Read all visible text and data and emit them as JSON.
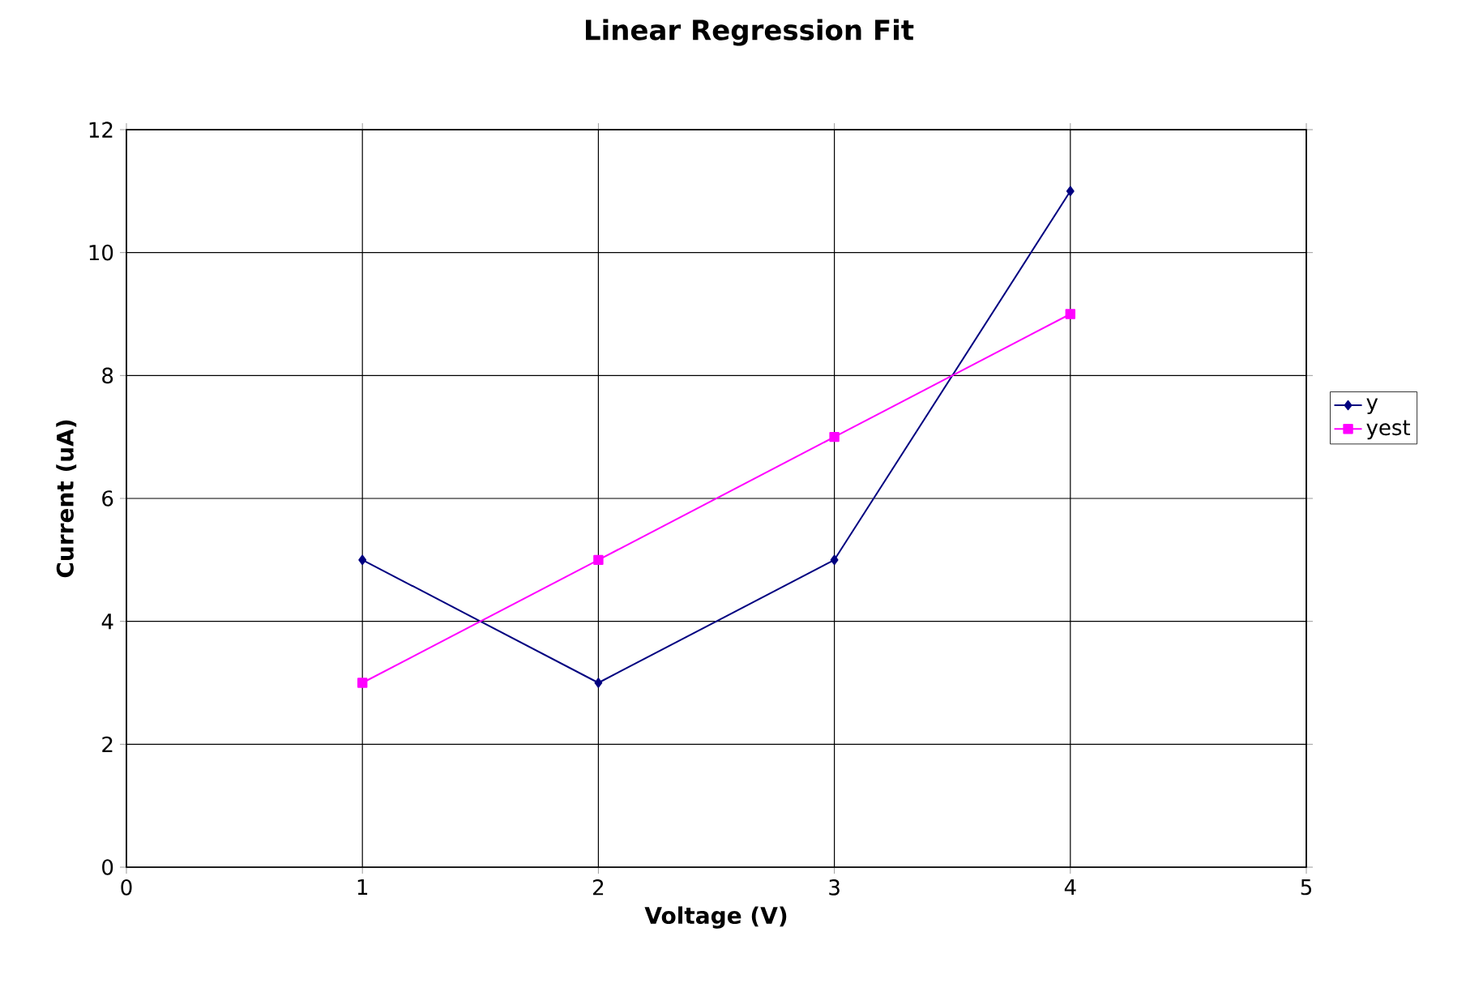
{
  "chart_data": {
    "type": "line",
    "title": "Linear Regression Fit",
    "xlabel": "Voltage (V)",
    "ylabel": "Current (uA)",
    "x": [
      1,
      2,
      3,
      4
    ],
    "series": [
      {
        "name": "y",
        "color": "#000080",
        "marker": "diamond",
        "values": [
          5,
          3,
          5,
          11
        ]
      },
      {
        "name": "yest",
        "color": "#ff00ff",
        "marker": "square",
        "values": [
          3,
          5,
          7,
          9
        ]
      }
    ],
    "xlim": [
      0,
      5
    ],
    "xticks": [
      0,
      1,
      2,
      3,
      4,
      5
    ],
    "ylim": [
      0,
      12
    ],
    "yticks": [
      0,
      2,
      4,
      6,
      8,
      10,
      12
    ],
    "grid": true,
    "legend": "right",
    "line_style": "solid"
  }
}
